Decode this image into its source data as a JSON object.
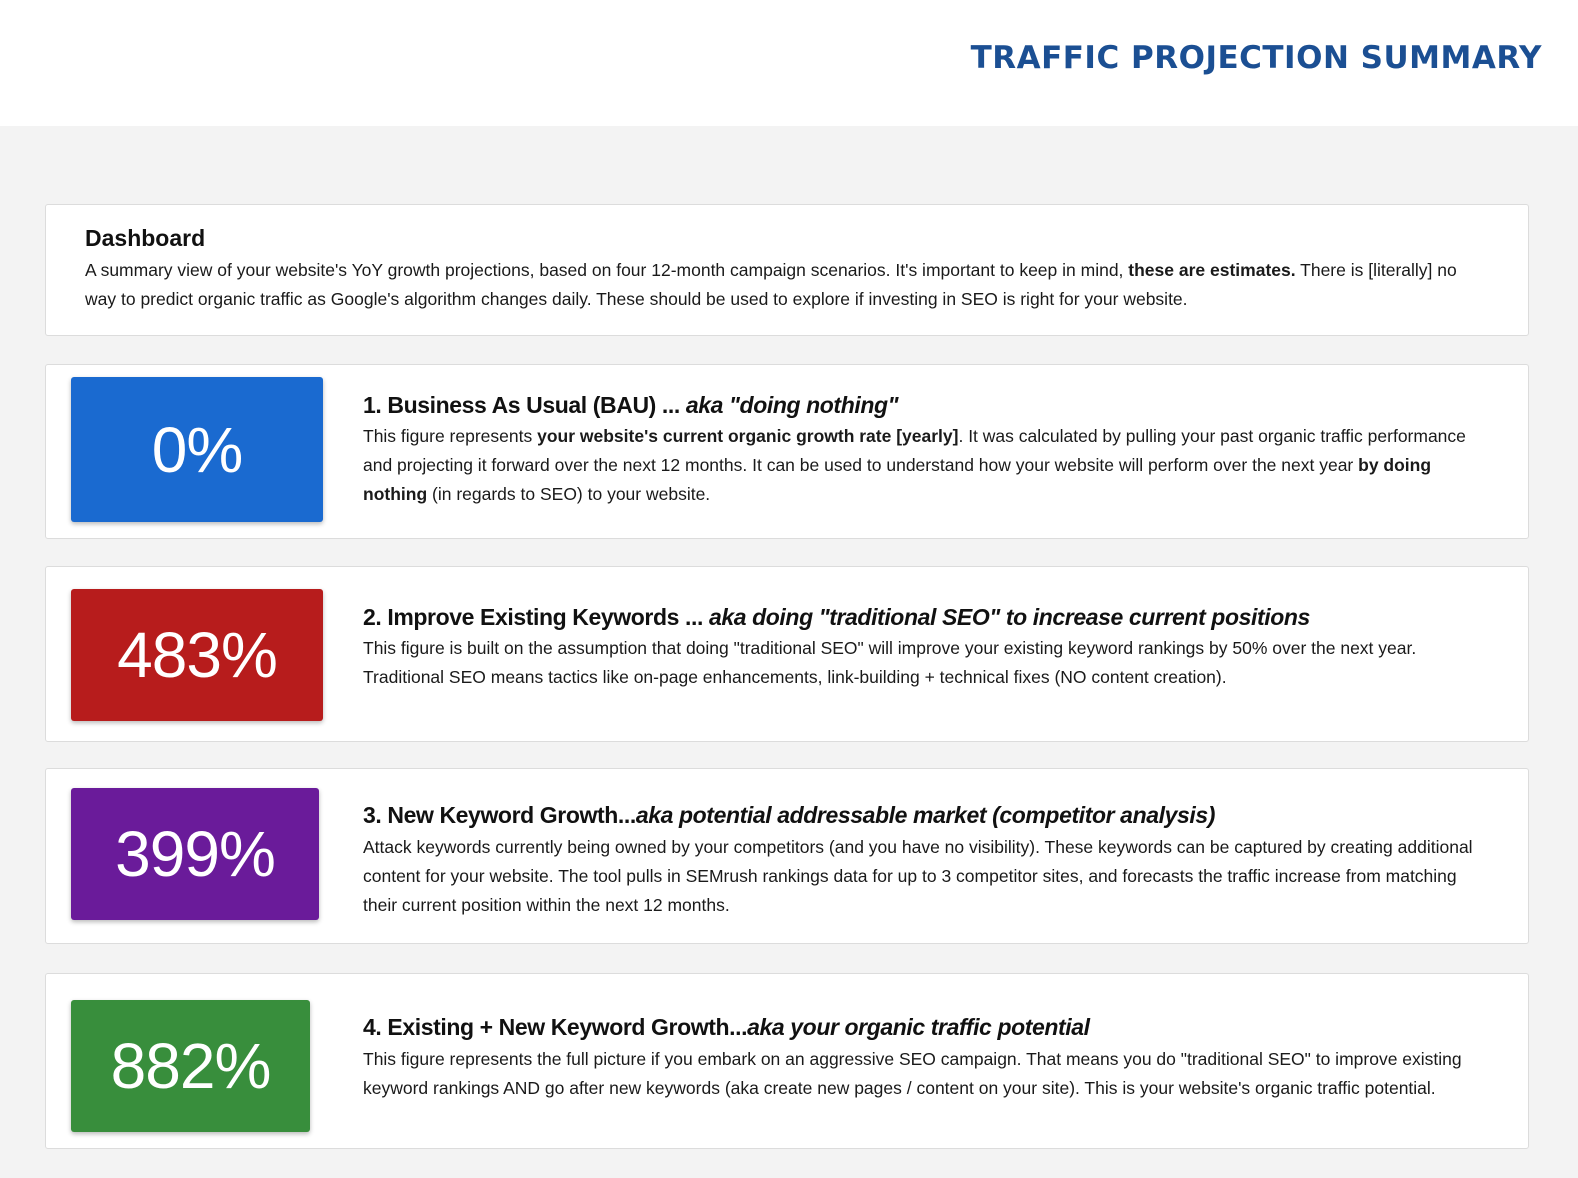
{
  "header": {
    "title": "TRAFFIC PROJECTION SUMMARY"
  },
  "dashboard": {
    "title": "Dashboard",
    "text_1": "A summary view of your website's YoY growth projections, based on four 12-month campaign scenarios. It's important to keep in mind, ",
    "text_bold": "these are estimates.",
    "text_2": " There is [literally] no way to predict organic traffic as Google's algorithm changes daily. These should be used to explore if investing in SEO is right for your website."
  },
  "scenarios": [
    {
      "value": "0%",
      "color": "#1a6ad0",
      "title": "1. Business As Usual (BAU) ... ",
      "title_aka": "aka \"doing nothing\"",
      "text_1": "This figure represents ",
      "text_bold_1": "your website's current organic growth rate [yearly]",
      "text_2": ". It was calculated by pulling your past organic traffic performance and projecting it forward over the next 12 months. It can be used to understand how your website will perform over the next year ",
      "text_bold_2": "by doing nothing",
      "text_3": " (in regards to SEO) to your website."
    },
    {
      "value": "483%",
      "color": "#b71c1c",
      "title": "2. Improve Existing Keywords ... ",
      "title_aka": "aka doing \"traditional SEO\" to increase current positions",
      "text_1": "This figure is built on the assumption that doing \"traditional SEO\" will improve your existing keyword rankings by 50% over the next year. Traditional SEO means tactics like on-page enhancements, link-building + technical fixes (NO content creation)."
    },
    {
      "value": "399%",
      "color": "#6a1b9a",
      "title": "3. New Keyword Growth...",
      "title_aka": "aka potential addressable market (competitor analysis)",
      "text_1": "Attack keywords currently being owned by your competitors (and you have no visibility). These keywords can be captured by creating additional content for your website. The tool pulls in SEMrush rankings data for up to 3 competitor sites, and forecasts the traffic increase from matching their current position within the next 12 months."
    },
    {
      "value": "882%",
      "color": "#388e3c",
      "title": "4. Existing + New Keyword Growth...",
      "title_aka": "aka your organic traffic potential",
      "text_1": "This figure represents the full picture if you embark on an aggressive SEO campaign. That means you do \"traditional SEO\" to improve existing keyword rankings AND go after new keywords (aka create new pages / content on your site). This is your website's organic traffic potential."
    }
  ]
}
